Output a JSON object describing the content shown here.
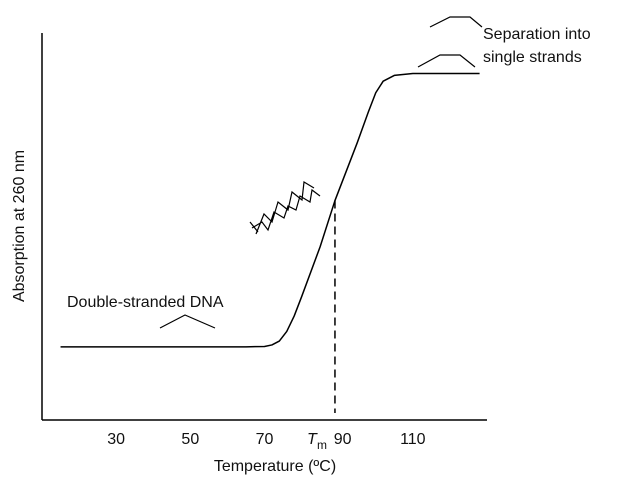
{
  "chart_data": {
    "type": "line",
    "x_label": "Temperature (ºC)",
    "y_label": "Absorption at 260 nm",
    "annotations": [
      "Double-stranded DNA",
      "Separation into",
      "single strands"
    ],
    "x": [
      15,
      65,
      70,
      72,
      74,
      76,
      78,
      80,
      85,
      89,
      95,
      98,
      100,
      102,
      105,
      110,
      128
    ],
    "series": [
      {
        "color": "#000000",
        "values": [
          0.19,
          0.19,
          0.191,
          0.195,
          0.205,
          0.23,
          0.27,
          0.32,
          0.45,
          0.57,
          0.72,
          0.8,
          0.85,
          0.88,
          0.895,
          0.9,
          0.9
        ]
      }
    ],
    "xlim": [
      10,
      130
    ],
    "ylim": [
      0,
      1
    ],
    "xticks": [
      30,
      50,
      70,
      {
        "value": 89,
        "label": "T",
        "subscript": "m"
      },
      90,
      110
    ],
    "tm_line_top": 0.57,
    "grid": false
  }
}
